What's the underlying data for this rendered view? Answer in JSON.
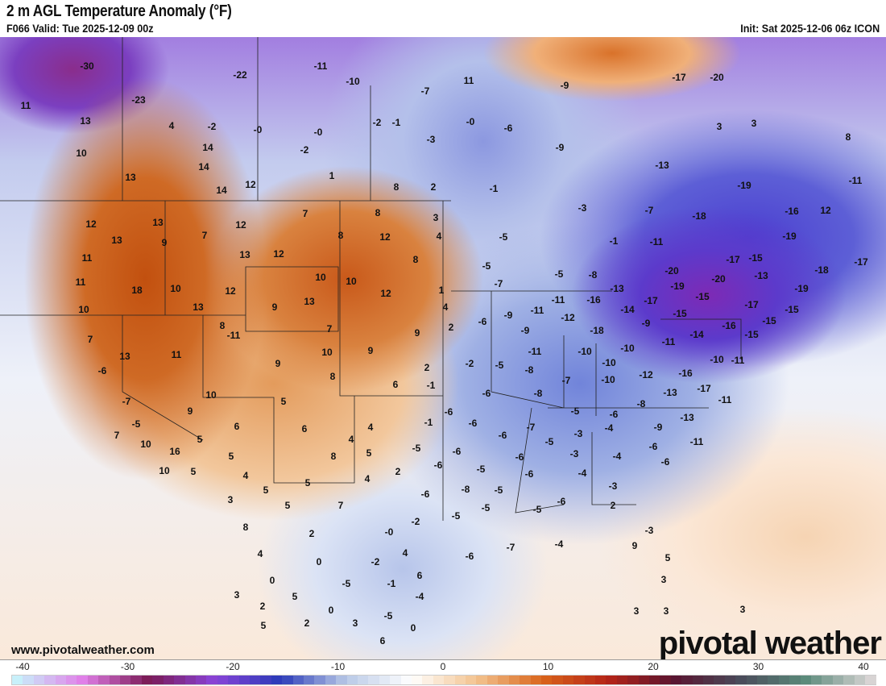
{
  "header": {
    "title": "2 m AGL Temperature Anomaly (°F)",
    "valid": "F066 Valid: Tue 2025-12-09 00z",
    "init": "Init: Sat 2025-12-06 06z ICON"
  },
  "map": {
    "labels": [
      "-30",
      "-22",
      "-11",
      "-10",
      "-23",
      "11",
      "13",
      "4",
      "-2",
      "-0",
      "-0",
      "11",
      "-7",
      "-2",
      "-1",
      "-0",
      "-6",
      "-9",
      "-20",
      "-17",
      "3",
      "3",
      "8",
      "-9",
      "-3",
      "10",
      "14",
      "-2",
      "13",
      "14",
      "1",
      "12",
      "14",
      "8",
      "2",
      "-1",
      "-13",
      "-19",
      "-11",
      "-3",
      "-7",
      "-18",
      "-16",
      "12",
      "12",
      "13",
      "12",
      "7",
      "8",
      "3",
      "-19",
      "13",
      "9",
      "7",
      "8",
      "12",
      "4",
      "-5",
      "-1",
      "-11",
      "-17",
      "-15",
      "-17",
      "11",
      "13",
      "12",
      "8",
      "-5",
      "-5",
      "-8",
      "-18",
      "11",
      "18",
      "10",
      "12",
      "10",
      "10",
      "12",
      "1",
      "-7",
      "-13",
      "-20",
      "-20",
      "-13",
      "-19",
      "-15",
      "-19",
      "10",
      "13",
      "9",
      "13",
      "4",
      "-9",
      "-11",
      "-11",
      "-16",
      "-14",
      "-17",
      "-15",
      "-17",
      "-15",
      "7",
      "8",
      "-11",
      "7",
      "9",
      "2",
      "-6",
      "-9",
      "-12",
      "-18",
      "-9",
      "-14",
      "-16",
      "-15",
      "-15",
      "13",
      "11",
      "10",
      "9",
      "-11",
      "-10",
      "-10",
      "-10",
      "-11",
      "-10",
      "-11",
      "-6",
      "9",
      "8",
      "6",
      "2",
      "-1",
      "-2",
      "-5",
      "-8",
      "-7",
      "-10",
      "-12",
      "-16",
      "-17",
      "-7",
      "10",
      "9",
      "5",
      "-6",
      "-8",
      "-13",
      "-11",
      "-8",
      "-5",
      "-6",
      "-5",
      "6",
      "6",
      "4",
      "-1",
      "-6",
      "-6",
      "-7",
      "-13",
      "-9",
      "7",
      "10",
      "5",
      "4",
      "-6",
      "-5",
      "-3",
      "-4",
      "-6",
      "-11",
      "16",
      "5",
      "8",
      "5",
      "-5",
      "-6",
      "-3",
      "-4",
      "-6",
      "10",
      "5",
      "4",
      "4",
      "2",
      "-6",
      "-5",
      "-6",
      "-6",
      "-4",
      "5",
      "5",
      "-3",
      "3",
      "5",
      "7",
      "-6",
      "-8",
      "-5",
      "-5",
      "-5",
      "-6",
      "-5",
      "2",
      "8",
      "2",
      "-0",
      "-2",
      "-3",
      "4",
      "0",
      "-2",
      "4",
      "-6",
      "-7",
      "-4",
      "9",
      "5",
      "0",
      "-5",
      "-1",
      "6",
      "3",
      "3",
      "5",
      "-4",
      "2",
      "0",
      "-5",
      "3",
      "5",
      "2",
      "3",
      "0",
      "3",
      "3",
      "6"
    ]
  },
  "footer": {
    "site": "www.pivotalweather.com",
    "watermark": "pivotal weather"
  },
  "colorbar": {
    "ticks": [
      "-40",
      "-30",
      "-20",
      "-10",
      "0",
      "10",
      "20",
      "30",
      "40"
    ],
    "stops": [
      "#c8f0fa",
      "#e07fe8",
      "#7a1a55",
      "#8a44d8",
      "#2a3ab8",
      "#b8c8e6",
      "#ffffff",
      "#f3c38f",
      "#d9641a",
      "#b52418",
      "#5a1430",
      "#4a4a5a",
      "#5a8a7a",
      "#d8d4d4"
    ]
  }
}
